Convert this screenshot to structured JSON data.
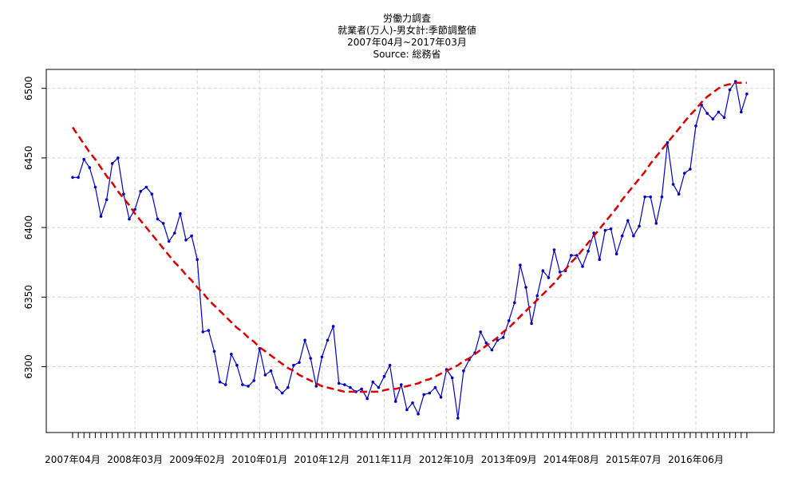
{
  "chart_data": {
    "type": "line",
    "title_lines": [
      "労働力調査",
      "就業者(万人)-男女計:季節調整値",
      "2007年04月~2017年03月",
      "Source: 総務省"
    ],
    "xlabel": "",
    "ylabel": "",
    "ylim": [
      6263,
      6505
    ],
    "yticks": [
      6300,
      6350,
      6400,
      6450,
      6500
    ],
    "x_tick_labels": [
      "2007年04月",
      "2008年03月",
      "2009年02月",
      "2010年01月",
      "2010年12月",
      "2011年11月",
      "2012年10月",
      "2013年09月",
      "2014年08月",
      "2015年07月",
      "2016年06月"
    ],
    "x_label_every": 11,
    "grid": true,
    "legend": "none",
    "series": [
      {
        "style": "solid-line-with-points",
        "color": "#0000cd",
        "values": [
          6436,
          6436,
          6449,
          6443,
          6429,
          6408,
          6420,
          6446,
          6450,
          6424,
          6406,
          6413,
          6426,
          6429,
          6424,
          6406,
          6403,
          6390,
          6396,
          6410,
          6391,
          6394,
          6377,
          6325,
          6326,
          6311,
          6289,
          6287,
          6309,
          6301,
          6287,
          6286,
          6290,
          6313,
          6294,
          6297,
          6285,
          6281,
          6285,
          6301,
          6303,
          6319,
          6306,
          6286,
          6307,
          6319,
          6329,
          6288,
          6287,
          6285,
          6282,
          6284,
          6277,
          6289,
          6285,
          6293,
          6301,
          6275,
          6287,
          6269,
          6274,
          6266,
          6280,
          6281,
          6285,
          6278,
          6298,
          6292,
          6263,
          6297,
          6305,
          6310,
          6325,
          6317,
          6312,
          6319,
          6321,
          6333,
          6346,
          6373,
          6357,
          6331,
          6351,
          6369,
          6364,
          6384,
          6368,
          6369,
          6380,
          6380,
          6372,
          6383,
          6396,
          6377,
          6398,
          6399,
          6381,
          6394,
          6405,
          6394,
          6401,
          6422,
          6422,
          6403,
          6422,
          6461,
          6431,
          6424,
          6439,
          6442,
          6473,
          6488,
          6482,
          6478,
          6483,
          6479,
          6499,
          6505,
          6483,
          6496
        ]
      },
      {
        "style": "dashed-trend",
        "color": "#dd0000",
        "values": [
          6472,
          6466,
          6460,
          6454,
          6449,
          6443,
          6437,
          6432,
          6426,
          6421,
          6416,
          6410,
          6405,
          6400,
          6395,
          6390,
          6385,
          6380,
          6375,
          6371,
          6366,
          6362,
          6357,
          6353,
          6348,
          6344,
          6340,
          6336,
          6332,
          6328,
          6325,
          6321,
          6318,
          6314,
          6311,
          6308,
          6305,
          6302,
          6299,
          6297,
          6294,
          6292,
          6290,
          6288,
          6286,
          6285,
          6284,
          6283,
          6282,
          6282,
          6282,
          6282,
          6282,
          6282,
          6282,
          6283,
          6284,
          6284,
          6285,
          6286,
          6287,
          6288,
          6290,
          6291,
          6293,
          6295,
          6297,
          6299,
          6301,
          6304,
          6306,
          6309,
          6312,
          6315,
          6318,
          6321,
          6325,
          6328,
          6332,
          6336,
          6340,
          6344,
          6348,
          6352,
          6356,
          6360,
          6365,
          6370,
          6375,
          6379,
          6384,
          6389,
          6394,
          6399,
          6404,
          6409,
          6414,
          6420,
          6425,
          6430,
          6435,
          6440,
          6446,
          6451,
          6456,
          6461,
          6466,
          6471,
          6476,
          6481,
          6485,
          6490,
          6494,
          6497,
          6500,
          6502,
          6503,
          6504,
          6504,
          6504
        ]
      }
    ]
  }
}
